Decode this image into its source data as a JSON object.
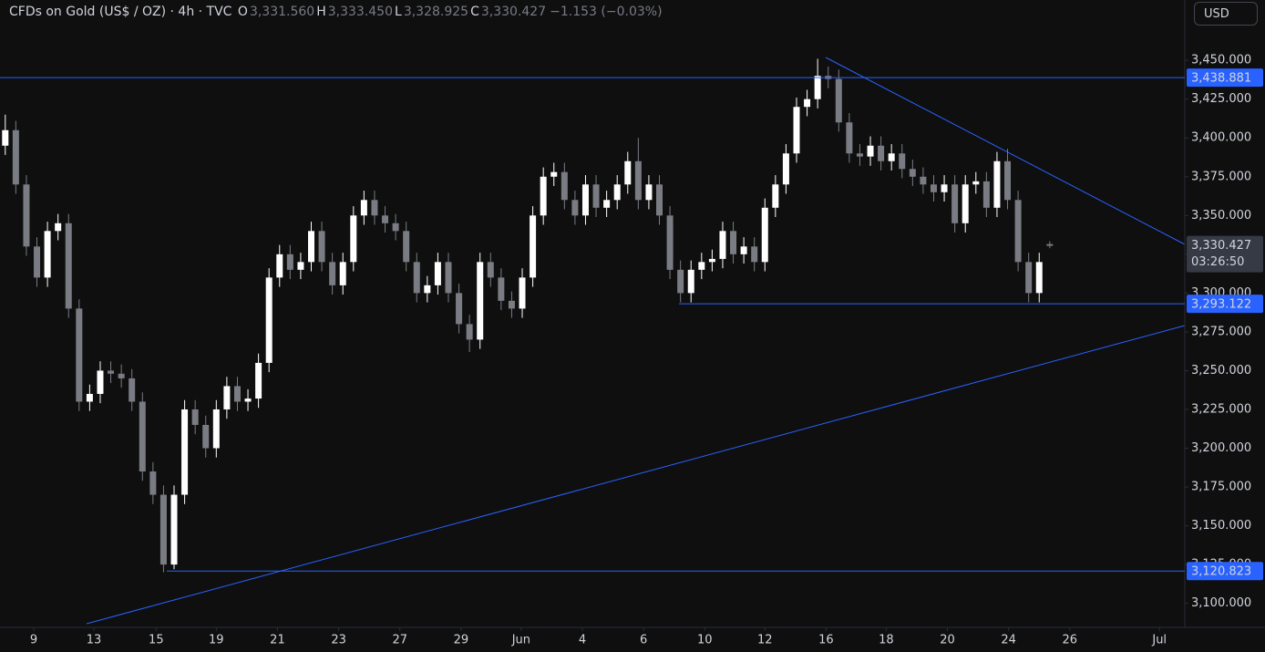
{
  "chart_data": {
    "type": "candlestick",
    "title": "CFDs on Gold (US$ / OZ) · 4h · TVC",
    "ohlc_labels": [
      {
        "key": "O",
        "value": "3,331.560"
      },
      {
        "key": "H",
        "value": "3,333.450"
      },
      {
        "key": "L",
        "value": "3,328.925"
      },
      {
        "key": "C",
        "value": "3,330.427"
      }
    ],
    "change": "−1.153 (−0.03%)",
    "currency": "USD",
    "up_color": "#ffffff",
    "down_color": "#7a7c84",
    "open": [
      3395,
      3405,
      3370,
      3330,
      3310,
      3340,
      3345,
      3290,
      3230,
      3235,
      3250,
      3248,
      3245,
      3230,
      3185,
      3170,
      3125,
      3170,
      3225,
      3215,
      3200,
      3225,
      3240,
      3230,
      3232,
      3255,
      3310,
      3325,
      3315,
      3320,
      3340,
      3320,
      3305,
      3320,
      3350,
      3360,
      3350,
      3345,
      3340,
      3320,
      3300,
      3305,
      3320,
      3300,
      3280,
      3270,
      3320,
      3310,
      3295,
      3290,
      3310,
      3350,
      3375,
      3378,
      3360,
      3350,
      3370,
      3355,
      3360,
      3370,
      3385,
      3360,
      3370,
      3350,
      3315,
      3300,
      3315,
      3320,
      3322,
      3340,
      3325,
      3330,
      3320,
      3355,
      3370,
      3390,
      3420,
      3425,
      3440,
      3438,
      3410,
      3390,
      3388,
      3395,
      3385,
      3390,
      3380,
      3375,
      3370,
      3365,
      3370,
      3345,
      3370,
      3372,
      3355,
      3385,
      3360,
      3320,
      3300,
      3331.56
    ],
    "high": [
      3415,
      3411,
      3376,
      3336,
      3346,
      3351,
      3351,
      3296,
      3241,
      3256,
      3256,
      3254,
      3251,
      3236,
      3191,
      3176,
      3176,
      3231,
      3231,
      3221,
      3231,
      3246,
      3246,
      3238,
      3261,
      3316,
      3331,
      3331,
      3326,
      3346,
      3346,
      3326,
      3326,
      3356,
      3366,
      3366,
      3356,
      3351,
      3346,
      3326,
      3311,
      3326,
      3326,
      3306,
      3286,
      3326,
      3326,
      3316,
      3301,
      3316,
      3356,
      3381,
      3384,
      3384,
      3366,
      3376,
      3376,
      3366,
      3376,
      3391,
      3400,
      3376,
      3376,
      3356,
      3321,
      3321,
      3326,
      3328,
      3346,
      3346,
      3336,
      3336,
      3361,
      3376,
      3396,
      3426,
      3431,
      3451,
      3446,
      3444,
      3416,
      3396,
      3401,
      3401,
      3396,
      3396,
      3386,
      3381,
      3376,
      3376,
      3376,
      3376,
      3378,
      3378,
      3391,
      3393,
      3366,
      3326,
      3326,
      3333.45
    ],
    "low": [
      3389,
      3364,
      3324,
      3304,
      3304,
      3334,
      3284,
      3224,
      3224,
      3229,
      3242,
      3239,
      3224,
      3179,
      3164,
      3120,
      3122,
      3164,
      3209,
      3194,
      3194,
      3219,
      3224,
      3224,
      3226,
      3249,
      3304,
      3309,
      3309,
      3314,
      3314,
      3299,
      3299,
      3314,
      3344,
      3344,
      3339,
      3334,
      3314,
      3294,
      3294,
      3299,
      3294,
      3274,
      3262,
      3264,
      3304,
      3289,
      3284,
      3284,
      3304,
      3344,
      3369,
      3354,
      3344,
      3344,
      3349,
      3349,
      3354,
      3364,
      3354,
      3354,
      3344,
      3309,
      3294,
      3294,
      3309,
      3314,
      3316,
      3319,
      3319,
      3314,
      3314,
      3349,
      3364,
      3384,
      3414,
      3419,
      3432,
      3404,
      3384,
      3382,
      3382,
      3379,
      3379,
      3374,
      3369,
      3364,
      3359,
      3359,
      3339,
      3339,
      3364,
      3349,
      3349,
      3354,
      3314,
      3294,
      3294,
      3328.925
    ],
    "close": [
      3405,
      3370,
      3330,
      3310,
      3340,
      3345,
      3290,
      3230,
      3235,
      3250,
      3248,
      3245,
      3230,
      3185,
      3170,
      3125,
      3170,
      3225,
      3215,
      3200,
      3225,
      3240,
      3230,
      3232,
      3255,
      3310,
      3325,
      3315,
      3320,
      3340,
      3320,
      3305,
      3320,
      3350,
      3360,
      3350,
      3345,
      3340,
      3320,
      3300,
      3305,
      3320,
      3300,
      3280,
      3270,
      3320,
      3310,
      3295,
      3290,
      3310,
      3350,
      3375,
      3378,
      3360,
      3350,
      3370,
      3355,
      3360,
      3370,
      3385,
      3360,
      3370,
      3350,
      3315,
      3300,
      3315,
      3320,
      3322,
      3340,
      3325,
      3330,
      3320,
      3355,
      3370,
      3390,
      3420,
      3425,
      3440,
      3438,
      3410,
      3390,
      3388,
      3395,
      3385,
      3390,
      3380,
      3375,
      3370,
      3365,
      3370,
      3345,
      3370,
      3372,
      3355,
      3385,
      3360,
      3320,
      3300,
      3320,
      3330.427
    ],
    "xlim": [
      -0.5,
      111.8
    ],
    "xticks": [
      {
        "value": 2.7,
        "label": "9"
      },
      {
        "value": 8.4,
        "label": "13"
      },
      {
        "value": 14.3,
        "label": "15"
      },
      {
        "value": 20.0,
        "label": "19"
      },
      {
        "value": 25.8,
        "label": "21"
      },
      {
        "value": 31.6,
        "label": "23"
      },
      {
        "value": 37.4,
        "label": "27"
      },
      {
        "value": 43.2,
        "label": "29"
      },
      {
        "value": 48.9,
        "label": "Jun"
      },
      {
        "value": 54.7,
        "label": "4"
      },
      {
        "value": 60.5,
        "label": "6"
      },
      {
        "value": 66.3,
        "label": "10"
      },
      {
        "value": 72.0,
        "label": "12"
      },
      {
        "value": 77.8,
        "label": "16"
      },
      {
        "value": 83.5,
        "label": "18"
      },
      {
        "value": 89.3,
        "label": "20"
      },
      {
        "value": 95.1,
        "label": "24"
      },
      {
        "value": 100.9,
        "label": "26"
      },
      {
        "value": 109.4,
        "label": "Jul"
      }
    ],
    "ylim": [
      3084.5,
      3488.9
    ],
    "yticks": [
      {
        "value": 3100,
        "label": "3,100.000"
      },
      {
        "value": 3125,
        "label": "3,125.000"
      },
      {
        "value": 3150,
        "label": "3,150.000"
      },
      {
        "value": 3175,
        "label": "3,175.000"
      },
      {
        "value": 3200,
        "label": "3,200.000"
      },
      {
        "value": 3225,
        "label": "3,225.000"
      },
      {
        "value": 3250,
        "label": "3,250.000"
      },
      {
        "value": 3275,
        "label": "3,275.000"
      },
      {
        "value": 3300,
        "label": "3,300.000"
      },
      {
        "value": 3325,
        "label": "3,325.000"
      },
      {
        "value": 3350,
        "label": "3,350.000"
      },
      {
        "value": 3375,
        "label": "3,375.000"
      },
      {
        "value": 3400,
        "label": "3,400.000"
      },
      {
        "value": 3425,
        "label": "3,425.000"
      },
      {
        "value": 3450,
        "label": "3,450.000"
      }
    ],
    "levels": [
      {
        "value": 3438.881,
        "label": "3,438.881"
      },
      {
        "value": 3293.122,
        "label": "3,293.122"
      },
      {
        "value": 3120.823,
        "label": "3,120.823"
      }
    ],
    "level_color": "#2962ff",
    "last_price": {
      "value": 3330.427,
      "label": "3,330.427"
    },
    "countdown": "03:26:50",
    "grid": false
  }
}
